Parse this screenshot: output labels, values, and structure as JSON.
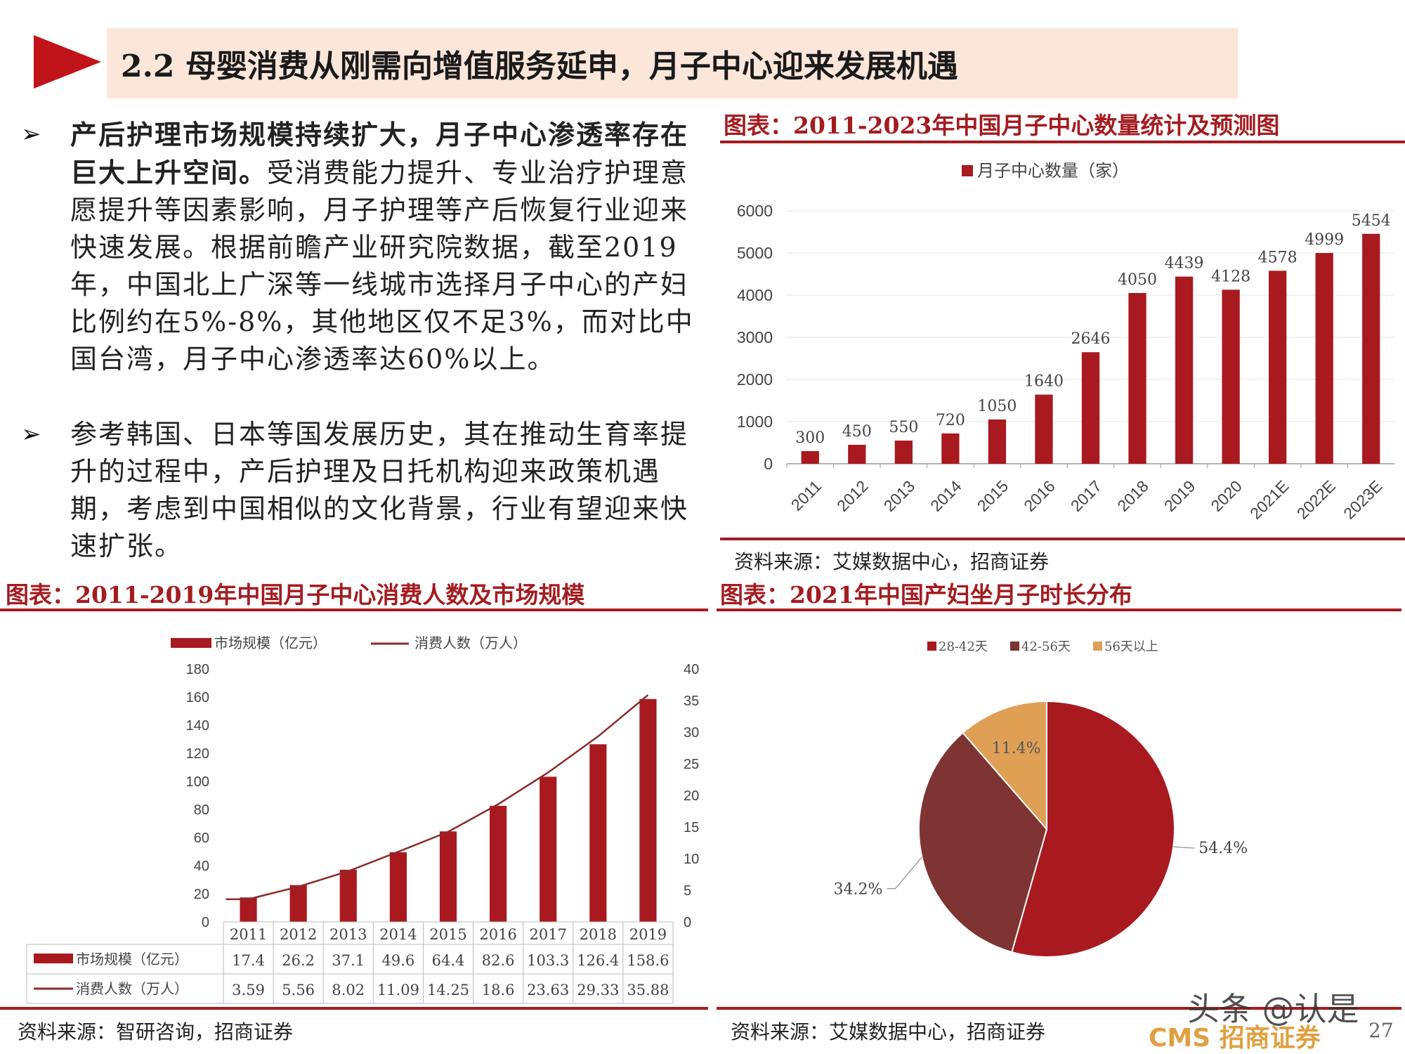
{
  "header": {
    "title": "2.2 母婴消费从刚需向增值服务延申，月子中心迎来发展机遇"
  },
  "bullets": [
    {
      "lead": "产后护理市场规模持续扩大，月子中心渗透率存在巨大上升空间。",
      "body": "受消费能力提升、专业治疗护理意愿提升等因素影响，月子护理等产后恢复行业迎来快速发展。根据前瞻产业研究院数据，截至2019年，中国北上广深等一线城市选择月子中心的产妇比例约在5%-8%，其他地区仅不足3%，而对比中国台湾，月子中心渗透率达60%以上。"
    },
    {
      "lead": "",
      "body": "参考韩国、日本等国发展历史，其在推动生育率提升的过程中，产后护理及日托机构迎来政策机遇期，考虑到中国相似的文化背景，行业有望迎来快速扩张。"
    }
  ],
  "chart1_caption": "图表：2011-2023年中国月子中心数量统计及预测图",
  "chart1_source": "资料来源：艾媒数据中心，招商证券",
  "chart2_caption": "图表：2011-2019年中国月子中心消费人数及市场规模",
  "chart2_source": "资料来源：智研咨询，招商证券",
  "chart3_caption": "图表：2021年中国产妇坐月子时长分布",
  "chart3_source": "资料来源：艾媒数据中心，招商证券",
  "watermark": "头条 @认是",
  "logo": "CMS 招商证券",
  "page_number": "27",
  "colors": {
    "accent": "#a31c20",
    "bar": "#a81a1f",
    "pie1": "#a81a1f",
    "pie2": "#7e3432",
    "pie3": "#dfa056"
  },
  "chart_data": [
    {
      "type": "bar",
      "legend": "月子中心数量（家）",
      "categories": [
        "2011",
        "2012",
        "2013",
        "2014",
        "2015",
        "2016",
        "2017",
        "2018",
        "2019",
        "2020",
        "2021E",
        "2022E",
        "2023E"
      ],
      "values": [
        300,
        450,
        550,
        720,
        1050,
        1640,
        2646,
        4050,
        4439,
        4128,
        4578,
        4999,
        5454
      ],
      "yticks": [
        "0",
        "1000",
        "2000",
        "3000",
        "4000",
        "5000",
        "6000"
      ],
      "ylim": [
        0,
        6000
      ],
      "grid": true,
      "legend_position": "top"
    },
    {
      "type": "bar",
      "categories": [
        "2011",
        "2012",
        "2013",
        "2014",
        "2015",
        "2016",
        "2017",
        "2018",
        "2019"
      ],
      "series": [
        {
          "name": "市场规模（亿元）",
          "type": "bar",
          "axis": "left",
          "values": [
            17.4,
            26.2,
            37.1,
            49.6,
            64.4,
            82.6,
            103.3,
            126.4,
            158.6
          ],
          "labels": [
            "17.4",
            "26.2",
            "37.1",
            "49.6",
            "64.4",
            "82.6",
            "103.3",
            "126.4",
            "158.6"
          ]
        },
        {
          "name": "消费人数（万人）",
          "type": "line",
          "axis": "right",
          "values": [
            3.59,
            5.56,
            8.02,
            11.09,
            14.25,
            18.6,
            23.63,
            29.33,
            35.88
          ],
          "labels": [
            "3.59",
            "5.56",
            "8.02",
            "11.09",
            "14.25",
            "18.6",
            "23.63",
            "29.33",
            "35.88"
          ]
        }
      ],
      "yticks_left": [
        "0",
        "20",
        "40",
        "60",
        "80",
        "100",
        "120",
        "140",
        "160",
        "180"
      ],
      "yticks_right": [
        "0",
        "5",
        "10",
        "15",
        "20",
        "25",
        "30",
        "35",
        "40"
      ],
      "ylim_left": [
        0,
        180
      ],
      "ylim_right": [
        0,
        40
      ],
      "data_table": true,
      "legend_position": "top"
    },
    {
      "type": "pie",
      "labels": [
        "28-42天",
        "42-56天",
        "56天以上"
      ],
      "values": [
        54.4,
        34.2,
        11.4
      ],
      "value_labels": [
        "54.4%",
        "34.2%",
        "11.4%"
      ],
      "legend_position": "top"
    }
  ]
}
